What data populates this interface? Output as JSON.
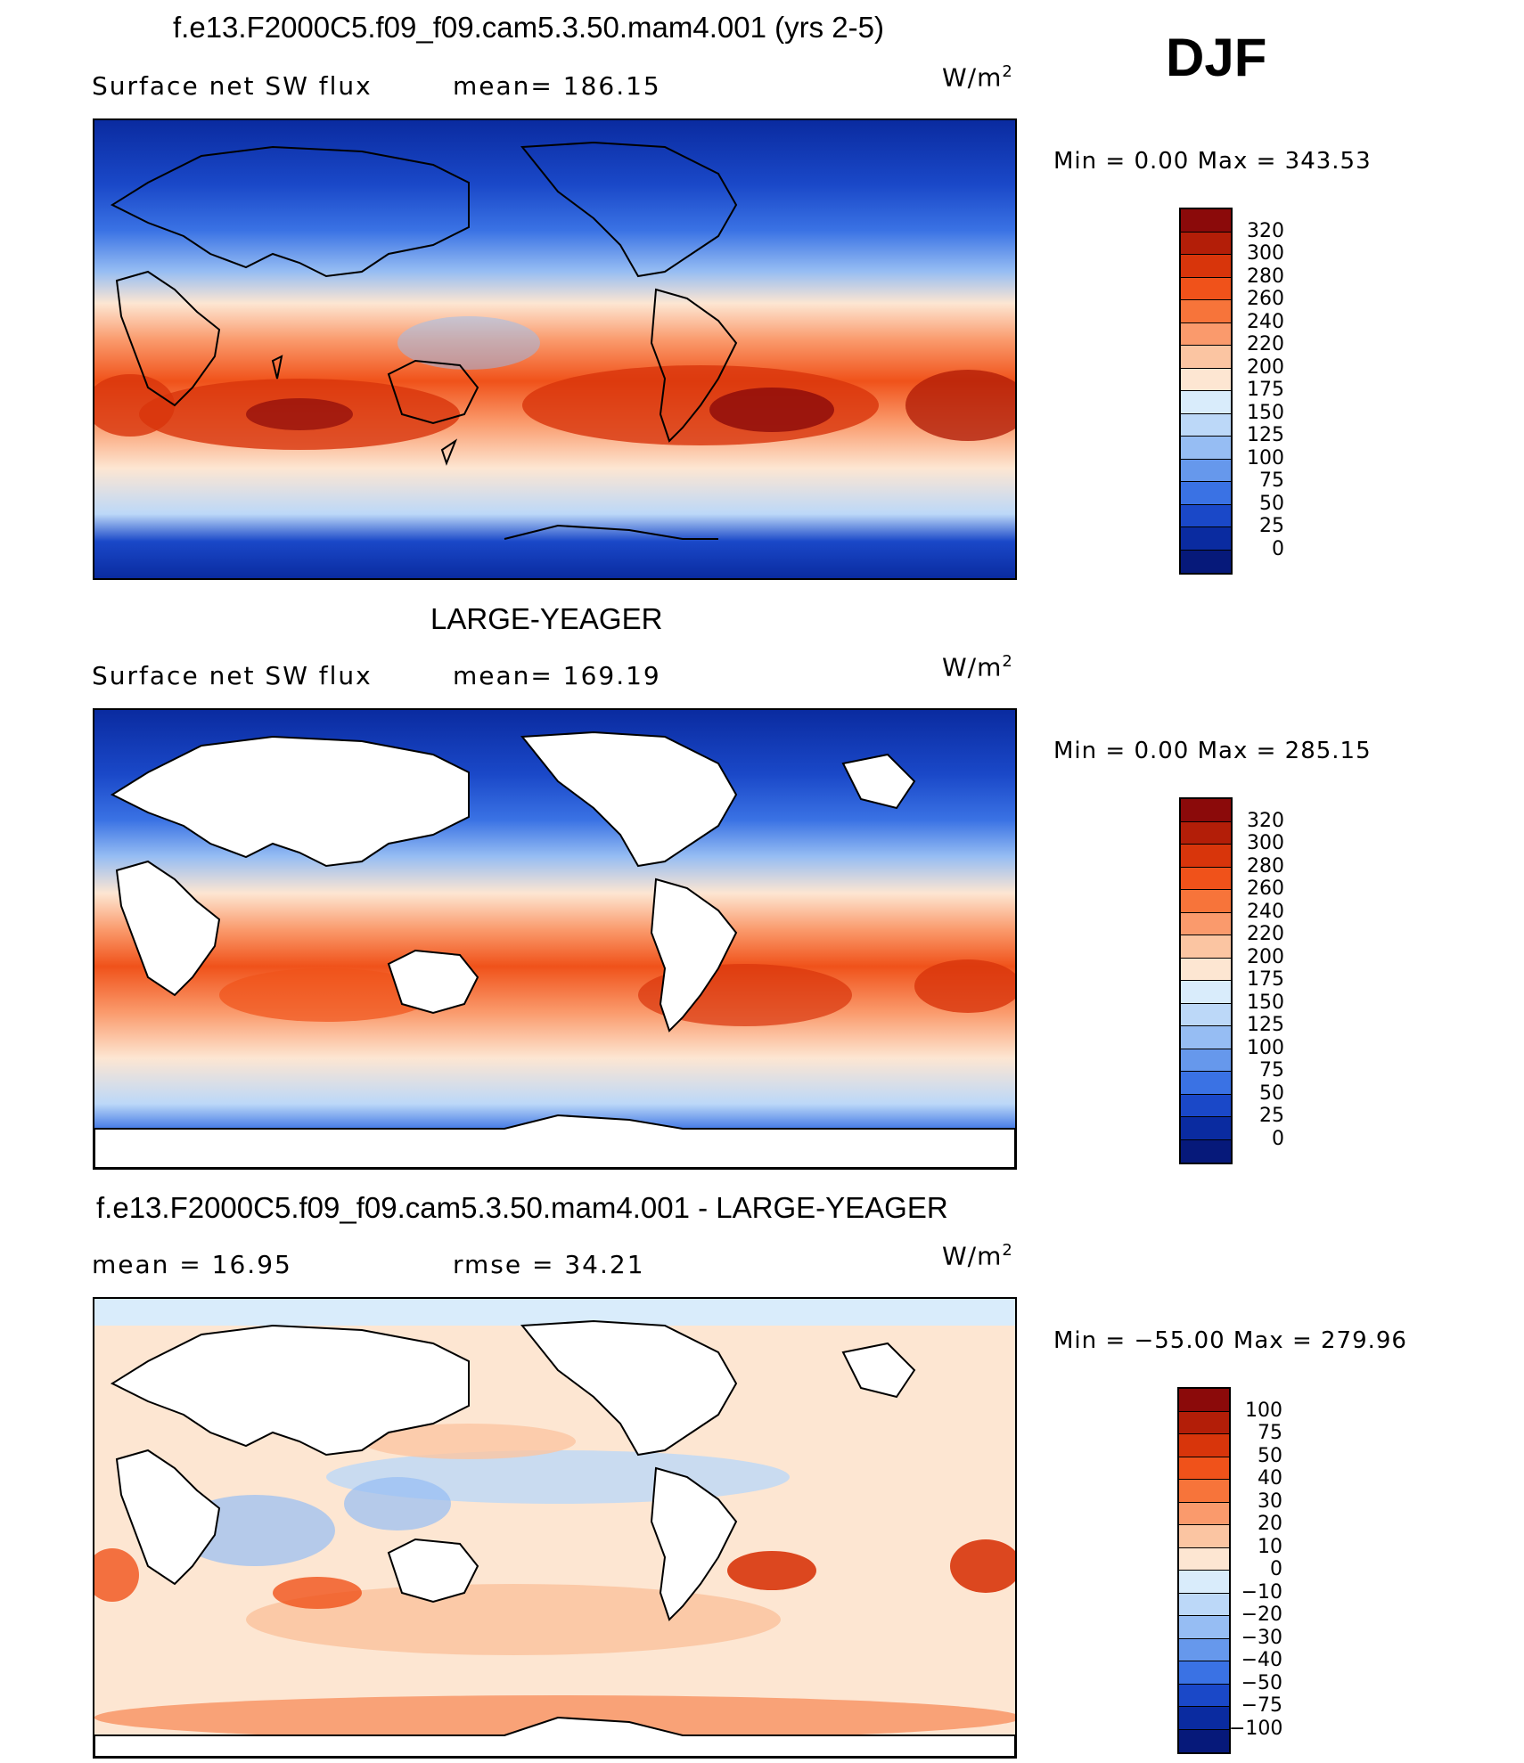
{
  "season": "DJF",
  "panels": [
    {
      "title": "f.e13.F2000C5.f09_f09.cam5.3.50.mam4.001 (yrs 2-5)",
      "left_text": "Surface net SW flux",
      "mid_text": "mean=  186.15",
      "units_base": "W/m",
      "units_sup": "2",
      "minmax": "Min  =     0.00  Max  =  343.53",
      "colorbar": {
        "labels": [
          "320",
          "300",
          "280",
          "260",
          "240",
          "220",
          "200",
          "175",
          "150",
          "125",
          "100",
          "75",
          "50",
          "25",
          "0"
        ],
        "colors": [
          "#8b0a0a",
          "#b31e08",
          "#d8350b",
          "#f0521a",
          "#f7743a",
          "#fa9a6c",
          "#fbc5a2",
          "#fde6d2",
          "#d9ecfb",
          "#bcd8f8",
          "#96bdf3",
          "#6698ec",
          "#3a72e4",
          "#1a48c8",
          "#0a2ba0",
          "#06197a"
        ]
      },
      "map_style": "model"
    },
    {
      "title": "LARGE-YEAGER",
      "left_text": "Surface net SW flux",
      "mid_text": "mean=  169.19",
      "units_base": "W/m",
      "units_sup": "2",
      "minmax": "Min  =     0.00  Max  =  285.15",
      "colorbar": {
        "labels": [
          "320",
          "300",
          "280",
          "260",
          "240",
          "220",
          "200",
          "175",
          "150",
          "125",
          "100",
          "75",
          "50",
          "25",
          "0"
        ],
        "colors": [
          "#8b0a0a",
          "#b31e08",
          "#d8350b",
          "#f0521a",
          "#f7743a",
          "#fa9a6c",
          "#fbc5a2",
          "#fde6d2",
          "#d9ecfb",
          "#bcd8f8",
          "#96bdf3",
          "#6698ec",
          "#3a72e4",
          "#1a48c8",
          "#0a2ba0",
          "#06197a"
        ]
      },
      "map_style": "obs"
    },
    {
      "title": "f.e13.F2000C5.f09_f09.cam5.3.50.mam4.001 - LARGE-YEAGER",
      "left_text": "mean  =     16.95",
      "mid_text": "rmse  =     34.21",
      "units_base": "W/m",
      "units_sup": "2",
      "minmax": "Min  = −55.00  Max  =  279.96",
      "colorbar": {
        "labels": [
          "100",
          "75",
          "50",
          "40",
          "30",
          "20",
          "10",
          "0",
          "−10",
          "−20",
          "−30",
          "−40",
          "−50",
          "−75",
          "−100"
        ],
        "colors": [
          "#8b0a0a",
          "#b31e08",
          "#d8350b",
          "#f0521a",
          "#f7743a",
          "#fa9a6c",
          "#fbc5a2",
          "#fde6d2",
          "#d9ecfb",
          "#bcd8f8",
          "#96bdf3",
          "#6698ec",
          "#3a72e4",
          "#1a48c8",
          "#0a2ba0",
          "#06197a"
        ]
      },
      "map_style": "diff"
    }
  ],
  "chart_data": [
    {
      "type": "heatmap",
      "title": "f.e13.F2000C5.f09_f09.cam5.3.50.mam4.001 (yrs 2-5)",
      "variable": "Surface net SW flux",
      "mean": 186.15,
      "units": "W/m2",
      "min": 0.0,
      "max": 343.53,
      "contour_levels": [
        0,
        25,
        50,
        75,
        100,
        125,
        150,
        175,
        200,
        220,
        240,
        260,
        280,
        300,
        320
      ]
    },
    {
      "type": "heatmap",
      "title": "LARGE-YEAGER",
      "variable": "Surface net SW flux",
      "mean": 169.19,
      "units": "W/m2",
      "min": 0.0,
      "max": 285.15,
      "contour_levels": [
        0,
        25,
        50,
        75,
        100,
        125,
        150,
        175,
        200,
        220,
        240,
        260,
        280,
        300,
        320
      ]
    },
    {
      "type": "heatmap",
      "title": "f.e13.F2000C5.f09_f09.cam5.3.50.mam4.001 - LARGE-YEAGER",
      "mean": 16.95,
      "rmse": 34.21,
      "units": "W/m2",
      "min": -55.0,
      "max": 279.96,
      "contour_levels": [
        -100,
        -75,
        -50,
        -40,
        -30,
        -20,
        -10,
        0,
        10,
        20,
        30,
        40,
        50,
        75,
        100
      ]
    }
  ]
}
